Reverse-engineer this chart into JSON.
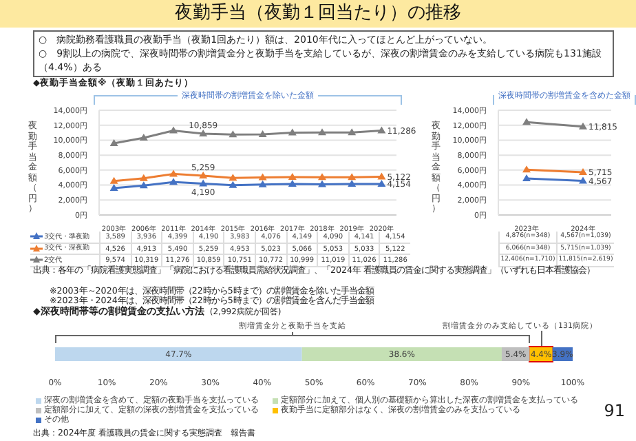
{
  "chart_data": [
    {
      "type": "line",
      "title": "夜勤手当（夜勤１回当たり）の推移",
      "subtitle": "◆夜勤手当金額※（夜勤１回あたり）",
      "ylabel": "夜勤手当金額（円）",
      "categories": [
        "2003年",
        "2006年",
        "2011年",
        "2014年",
        "2015年",
        "2016年",
        "2017年",
        "2018年",
        "2019年",
        "2020年"
      ],
      "series": [
        {
          "name": "3交代・準夜勤",
          "color": "#4472c4",
          "values": [
            3589,
            3936,
            4399,
            4190,
            3983,
            4076,
            4149,
            4090,
            4141,
            4154
          ],
          "value_labels": [
            "3,589",
            "3,936",
            "4,399",
            "4,190",
            "3,983",
            "4,076",
            "4,149",
            "4,090",
            "4,141",
            "4,154"
          ]
        },
        {
          "name": "3交代・深夜勤",
          "color": "#ed7d31",
          "values": [
            4526,
            4913,
            5490,
            5259,
            4953,
            5023,
            5066,
            5053,
            5033,
            5122
          ],
          "value_labels": [
            "4,526",
            "4,913",
            "5,490",
            "5,259",
            "4,953",
            "5,023",
            "5,066",
            "5,053",
            "5,033",
            "5,122"
          ]
        },
        {
          "name": "2交代",
          "color": "#7f7f7f",
          "values": [
            9574,
            10319,
            11276,
            10859,
            10751,
            10772,
            10999,
            11019,
            11026,
            11286
          ],
          "value_labels": [
            "9,574",
            "10,319",
            "11,276",
            "10,859",
            "10,751",
            "10,772",
            "10,999",
            "11,019",
            "11,026",
            "11,286"
          ]
        }
      ],
      "ylim": [
        0,
        14000
      ],
      "yticks": [
        {
          "value": 0,
          "label": "0円"
        },
        {
          "value": 2000,
          "label": "2,000円"
        },
        {
          "value": 4000,
          "label": "4,000円"
        },
        {
          "value": 6000,
          "label": "6,000円"
        },
        {
          "value": 8000,
          "label": "8,000円"
        },
        {
          "value": 10000,
          "label": "10,000円"
        },
        {
          "value": 12000,
          "label": "12,000円"
        },
        {
          "value": 14000,
          "label": "14,000円"
        }
      ],
      "grid": "y",
      "legend": "bottom",
      "marker": "triangle",
      "annotations": [
        "○　病院勤務看護職員の夜勤手当（夜勤1回あたり）額は、2010年代に入ってほとんど上がっていない。",
        "○　9割以上の病院で、深夜時間帯の割増賃金分と夜勤手当を支給しているが、深夜の割増賃金のみを支給している病院も131施設（4.4%）ある",
        "深夜時間帯の割増賃金を除いた金額",
        "出典：各年の「病院看護実態調査」「病院における看護職員需給状況調査」、「2024年 看護職員の賃金に関する実態調査」（いずれも日本看護協会）",
        "※2003年～2020年は、深夜時間帯（22時から5時まで）の割増賃金を除いた手当金額",
        "※2023年・2024年は、深夜時間帯（22時から5時まで）の割増賃金を含んだ手当金額",
        {
          "text": "10,859",
          "x": "2014年",
          "y": 10859
        },
        {
          "text": "5,259",
          "x": "2014年",
          "y": 5259
        },
        {
          "text": "4,190",
          "x": "2014年",
          "y": 4190
        },
        {
          "text": "11,286",
          "x": "2020年",
          "y": 11286
        },
        {
          "text": "5,122",
          "x": "2020年",
          "y": 5122
        },
        {
          "text": "4,154",
          "x": "2020年",
          "y": 4154
        }
      ]
    },
    {
      "type": "line",
      "ylabel": "夜勤手当金額（円）",
      "categories": [
        "2023年",
        "2024年"
      ],
      "series": [
        {
          "color": "#4472c4",
          "values": [
            4876,
            4567
          ],
          "value_labels": [
            "4,876(n=348)",
            "4,567(n=1,039)"
          ]
        },
        {
          "color": "#ed7d31",
          "values": [
            6066,
            5715
          ],
          "value_labels": [
            "6,066(n=348)",
            "5,715(n=1,039)"
          ]
        },
        {
          "color": "#7f7f7f",
          "values": [
            12406,
            11815
          ],
          "value_labels": [
            "12,406(n=1,710)",
            "11,815(n=2,619)"
          ]
        }
      ],
      "ylim": [
        0,
        14000
      ],
      "yticks": [
        {
          "value": 0,
          "label": "0円"
        },
        {
          "value": 2000,
          "label": "2,000円"
        },
        {
          "value": 4000,
          "label": "4,000円"
        },
        {
          "value": 6000,
          "label": "6,000円"
        },
        {
          "value": 8000,
          "label": "8,000円"
        },
        {
          "value": 10000,
          "label": "10,000円"
        },
        {
          "value": 12000,
          "label": "12,000円"
        },
        {
          "value": 14000,
          "label": "14,000円"
        }
      ],
      "grid": "y",
      "marker": "triangle",
      "annotations": [
        "深夜時間帯の割増賃金を含めた金額",
        {
          "text": "11,815",
          "x": "2024年",
          "y": 11815
        },
        {
          "text": "5,715",
          "x": "2024年",
          "y": 5715
        },
        {
          "text": "4,567",
          "x": "2024年",
          "y": 4567
        }
      ]
    },
    {
      "type": "bar",
      "orientation": "horizontal",
      "stacked": true,
      "title": "◆深夜時間帯等の割増賃金の支払い方法",
      "subtitle": "(2,992病院が回答)",
      "categories": [
        null
      ],
      "series": [
        {
          "name": "深夜の割増賃金を含めて、定額の夜勤手当を支払っている",
          "color": "#bdd7ee",
          "values": [
            47.7
          ],
          "value_labels": [
            "47.7%"
          ]
        },
        {
          "name": "定額部分に加えて、個人別の基礎額から算出した深夜の割増賃金を支払っている",
          "color": "#c5e0b4",
          "values": [
            38.6
          ],
          "value_labels": [
            "38.6%"
          ]
        },
        {
          "name": "定額部分に加えて、定額の深夜の割増賃金を支払っている",
          "color": "#bfbfbf",
          "values": [
            5.4
          ],
          "value_labels": [
            "5.4%"
          ]
        },
        {
          "name": "夜勤手当に定額部分はなく、深夜の割増賃金のみを支払っている",
          "color": "#ffc000",
          "values": [
            4.4
          ],
          "value_labels": [
            "4.4%"
          ]
        },
        {
          "name": "その他",
          "color": "#4472c4",
          "values": [
            3.9
          ],
          "value_labels": [
            "3.9%"
          ]
        }
      ],
      "xlim": [
        0,
        100
      ],
      "xticks": [
        {
          "value": 0,
          "label": "0%"
        },
        {
          "value": 10,
          "label": "10%"
        },
        {
          "value": 20,
          "label": "20%"
        },
        {
          "value": 30,
          "label": "30%"
        },
        {
          "value": 40,
          "label": "40%"
        },
        {
          "value": 50,
          "label": "50%"
        },
        {
          "value": 60,
          "label": "60%"
        },
        {
          "value": 70,
          "label": "70%"
        },
        {
          "value": 80,
          "label": "80%"
        },
        {
          "value": 90,
          "label": "90%"
        },
        {
          "value": 100,
          "label": "100%"
        }
      ],
      "legend": "bottom",
      "annotations": [
        "割増賃金分と夜勤手当を支給",
        "割増賃金分のみ支給している（131病院）",
        "出典：2024年度 看護職員の賃金に関する実態調査　報告書",
        "91"
      ]
    }
  ]
}
